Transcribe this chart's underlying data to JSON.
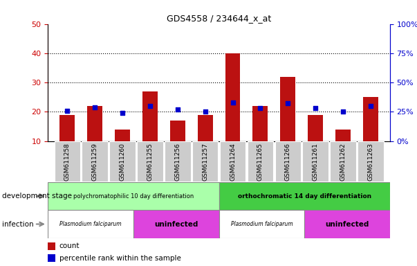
{
  "title": "GDS4558 / 234644_x_at",
  "samples": [
    "GSM611258",
    "GSM611259",
    "GSM611260",
    "GSM611255",
    "GSM611256",
    "GSM611257",
    "GSM611264",
    "GSM611265",
    "GSM611266",
    "GSM611261",
    "GSM611262",
    "GSM611263"
  ],
  "counts": [
    19,
    22,
    14,
    27,
    17,
    19,
    40,
    22,
    32,
    19,
    14,
    25
  ],
  "percentiles": [
    26,
    29,
    24,
    30,
    27,
    25,
    33,
    28,
    32,
    28,
    25,
    30
  ],
  "bar_color": "#bb1111",
  "dot_color": "#0000cc",
  "left_ylim": [
    10,
    50
  ],
  "left_yticks": [
    10,
    20,
    30,
    40,
    50
  ],
  "right_ylim": [
    0,
    100
  ],
  "right_yticks": [
    0,
    25,
    50,
    75,
    100
  ],
  "left_tick_color": "#cc0000",
  "right_tick_color": "#0000cc",
  "dev_stage_label1": "polychromatophilic 10 day differentiation",
  "dev_stage_label2": "orthochromatic 14 day differentiation",
  "dev_color1": "#aaffaa",
  "dev_color2": "#44cc44",
  "inf_label_pf": "Plasmodium falciparum",
  "inf_label_un": "uninfected",
  "inf_color_pf": "#ffffff",
  "inf_color_un": "#dd44dd",
  "row_label_dev": "development stage",
  "row_label_inf": "infection",
  "legend_count": "count",
  "legend_pct": "percentile rank within the sample",
  "xlabel_bg": "#cccccc",
  "n_samples": 12,
  "group1_size": 6,
  "group2_size": 6,
  "pf_size": 3,
  "un_size": 3
}
